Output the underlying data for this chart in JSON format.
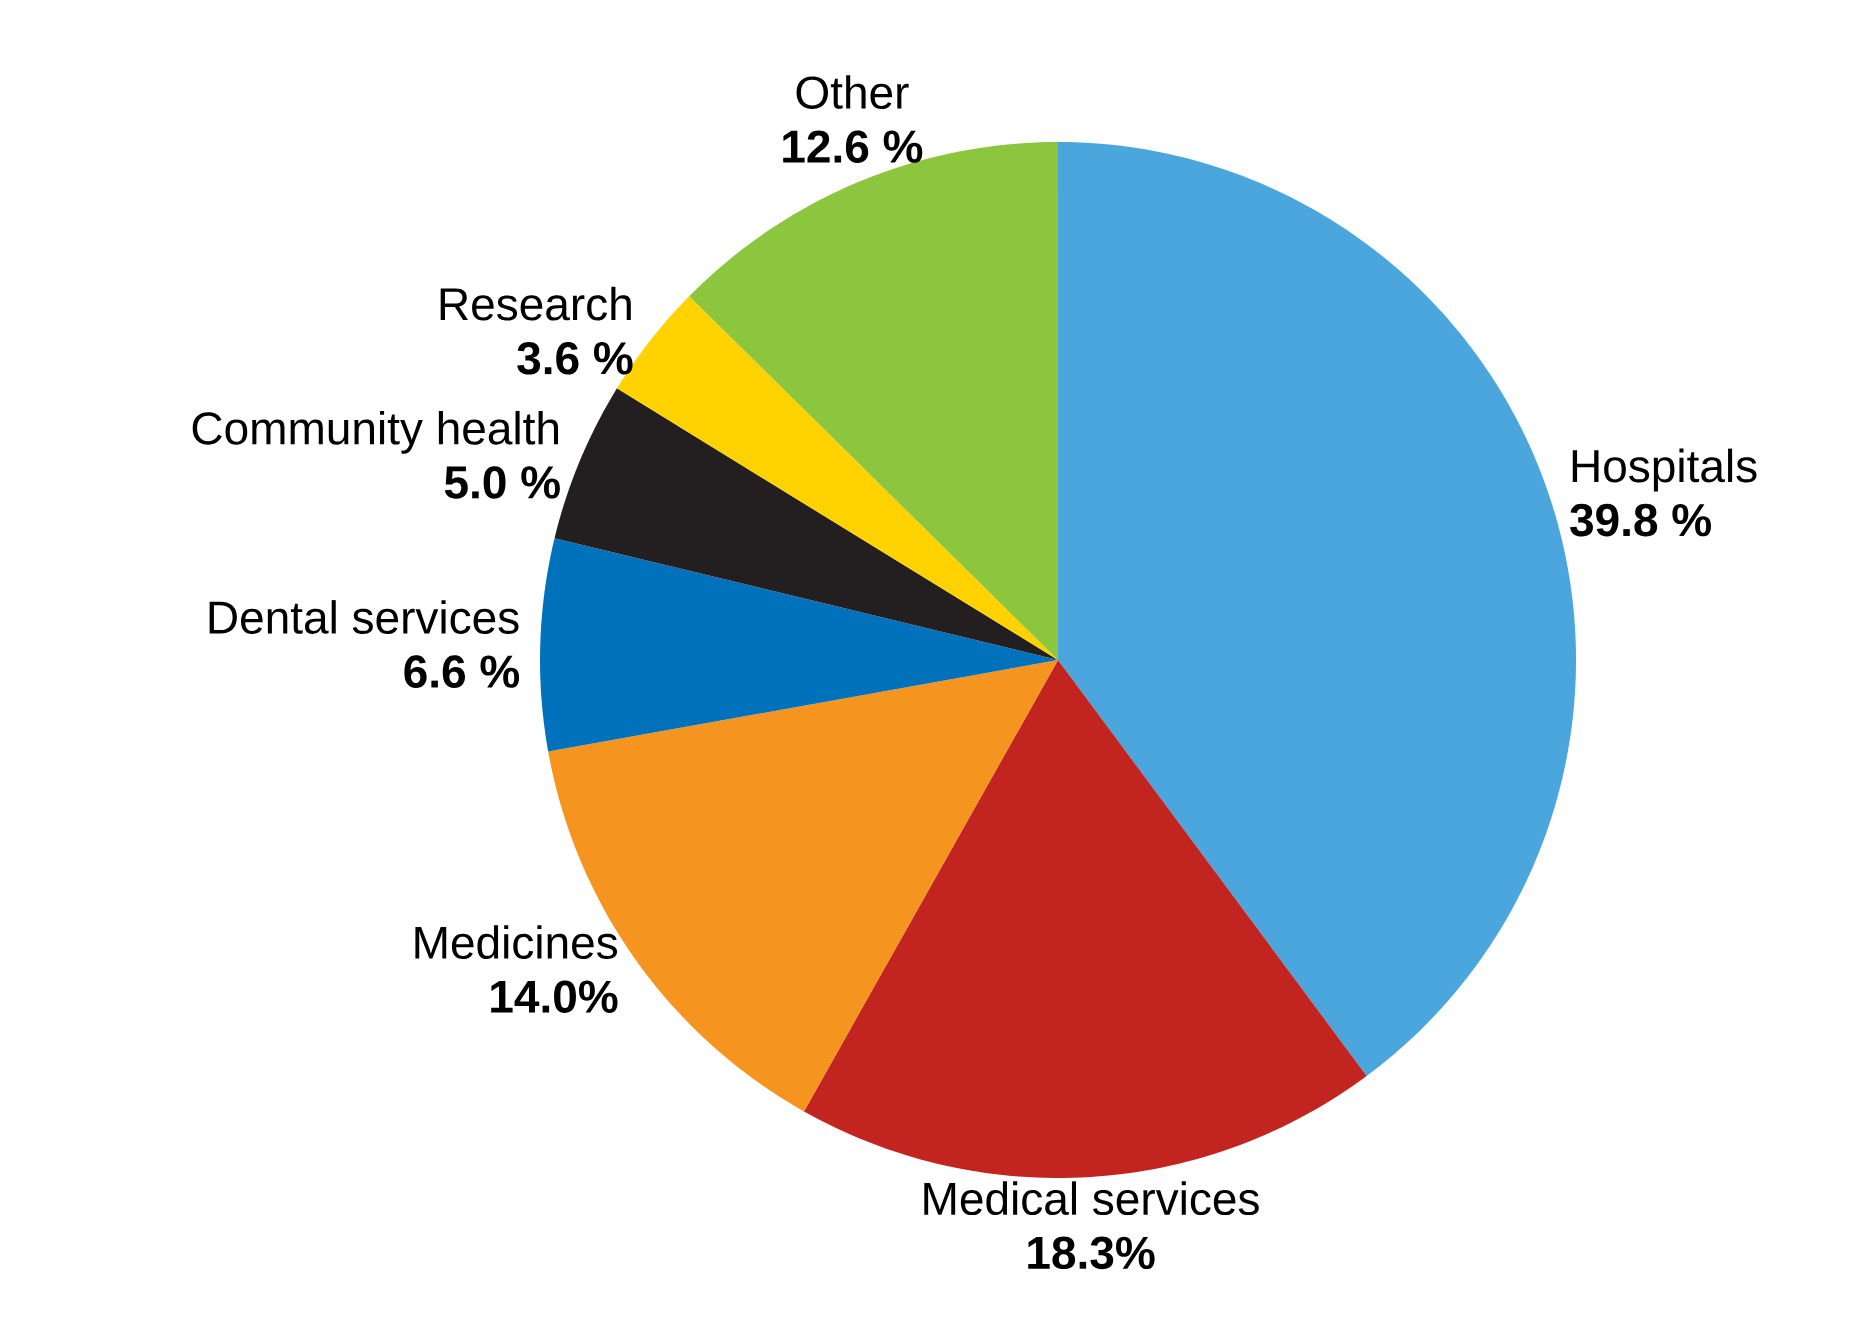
{
  "chart_data": {
    "type": "pie",
    "categories": [
      "Hospitals",
      "Medical services",
      "Medicines",
      "Dental services",
      "Community health",
      "Research",
      "Other"
    ],
    "values": [
      39.8,
      18.3,
      14.0,
      6.6,
      5.0,
      3.6,
      12.6
    ],
    "value_labels": [
      "39.8 %",
      "18.3%",
      "14.0%",
      "6.6 %",
      "5.0 %",
      "3.6 %",
      "12.6 %"
    ],
    "colors": [
      "#4aa6dc",
      "#c22420",
      "#f5941e",
      "#0072bc",
      "#231f20",
      "#ffd200",
      "#8cc63f"
    ]
  }
}
